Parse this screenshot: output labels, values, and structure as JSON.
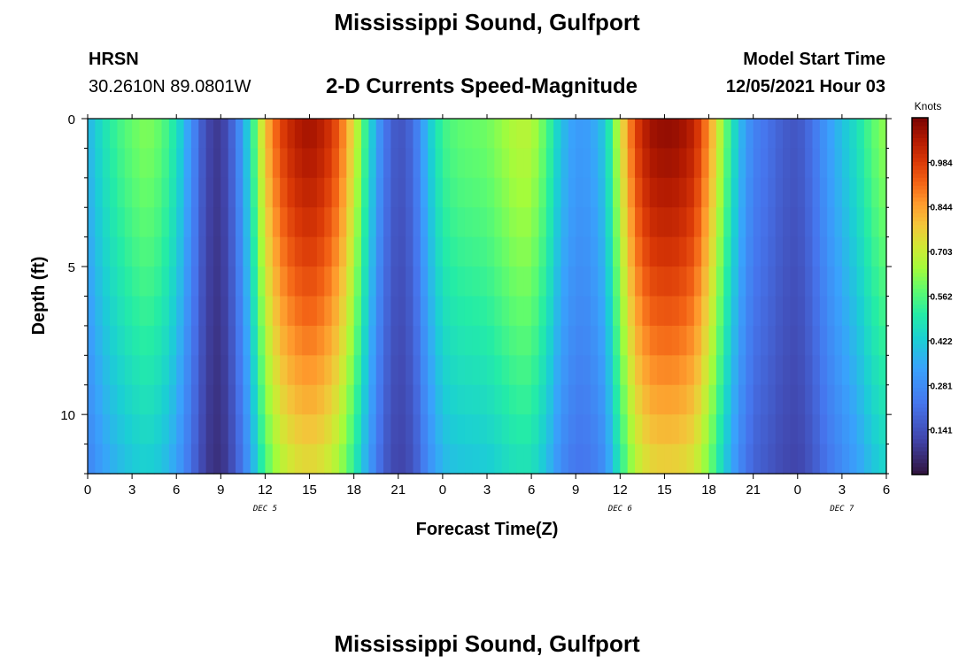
{
  "header": {
    "title": "Mississippi Sound, Gulfport",
    "station_id": "HRSN",
    "station_coords": "30.2610N  89.0801W",
    "subtitle": "2-D Currents Speed-Magnitude",
    "model_start_label": "Model Start Time",
    "model_start_value": "12/05/2021 Hour 03"
  },
  "footer": {
    "title": "Mississippi Sound, Gulfport"
  },
  "chart_data": {
    "type": "heatmap",
    "title": "2-D Currents Speed-Magnitude",
    "xlabel": "Forecast Time(Z)",
    "ylabel": "Depth (ft)",
    "x_tick_labels": [
      "0",
      "3",
      "6",
      "9",
      "12",
      "15",
      "18",
      "21",
      "0",
      "3",
      "6",
      "9",
      "12",
      "15",
      "18",
      "21",
      "0",
      "3",
      "6"
    ],
    "x_range_hours": [
      0,
      54
    ],
    "y_tick_labels": [
      "0",
      "5",
      "10"
    ],
    "y_range": [
      0,
      12
    ],
    "y_inverted": true,
    "date_labels": [
      {
        "text": "DEC 5",
        "hour": 12
      },
      {
        "text": "DEC 6",
        "hour": 36
      },
      {
        "text": "DEC 7",
        "hour": 51
      }
    ],
    "colorbar": {
      "title": "Knots",
      "tick_labels": [
        "0.984",
        "0.844",
        "0.703",
        "0.562",
        "0.422",
        "0.281",
        "0.141"
      ],
      "tick_values": [
        0.984,
        0.844,
        0.703,
        0.562,
        0.422,
        0.281,
        0.141
      ],
      "range": [
        0,
        1.125
      ]
    },
    "surface_speed_knots": [
      {
        "hour": 0,
        "v": 0.35
      },
      {
        "hour": 1,
        "v": 0.45
      },
      {
        "hour": 2,
        "v": 0.52
      },
      {
        "hour": 3,
        "v": 0.57
      },
      {
        "hour": 4,
        "v": 0.6
      },
      {
        "hour": 5,
        "v": 0.56
      },
      {
        "hour": 6,
        "v": 0.46
      },
      {
        "hour": 7,
        "v": 0.28
      },
      {
        "hour": 8,
        "v": 0.1
      },
      {
        "hour": 9,
        "v": 0.06
      },
      {
        "hour": 10,
        "v": 0.2
      },
      {
        "hour": 11,
        "v": 0.45
      },
      {
        "hour": 12,
        "v": 0.78
      },
      {
        "hour": 13,
        "v": 0.95
      },
      {
        "hour": 14,
        "v": 1.03
      },
      {
        "hour": 15,
        "v": 1.06
      },
      {
        "hour": 16,
        "v": 1.02
      },
      {
        "hour": 17,
        "v": 0.92
      },
      {
        "hour": 18,
        "v": 0.72
      },
      {
        "hour": 19,
        "v": 0.45
      },
      {
        "hour": 20,
        "v": 0.22
      },
      {
        "hour": 21,
        "v": 0.12
      },
      {
        "hour": 22,
        "v": 0.18
      },
      {
        "hour": 23,
        "v": 0.38
      },
      {
        "hour": 24,
        "v": 0.52
      },
      {
        "hour": 25,
        "v": 0.56
      },
      {
        "hour": 26,
        "v": 0.57
      },
      {
        "hour": 27,
        "v": 0.58
      },
      {
        "hour": 28,
        "v": 0.62
      },
      {
        "hour": 29,
        "v": 0.66
      },
      {
        "hour": 30,
        "v": 0.66
      },
      {
        "hour": 31,
        "v": 0.55
      },
      {
        "hour": 32,
        "v": 0.38
      },
      {
        "hour": 33,
        "v": 0.3
      },
      {
        "hour": 34,
        "v": 0.31
      },
      {
        "hour": 35,
        "v": 0.4
      },
      {
        "hour": 36,
        "v": 0.7
      },
      {
        "hour": 37,
        "v": 0.95
      },
      {
        "hour": 38,
        "v": 1.06
      },
      {
        "hour": 39,
        "v": 1.08
      },
      {
        "hour": 40,
        "v": 1.07
      },
      {
        "hour": 41,
        "v": 1.02
      },
      {
        "hour": 42,
        "v": 0.85
      },
      {
        "hour": 43,
        "v": 0.6
      },
      {
        "hour": 44,
        "v": 0.38
      },
      {
        "hour": 45,
        "v": 0.24
      },
      {
        "hour": 46,
        "v": 0.2
      },
      {
        "hour": 47,
        "v": 0.15
      },
      {
        "hour": 48,
        "v": 0.13
      },
      {
        "hour": 49,
        "v": 0.2
      },
      {
        "hour": 50,
        "v": 0.3
      },
      {
        "hour": 51,
        "v": 0.38
      },
      {
        "hour": 52,
        "v": 0.45
      },
      {
        "hour": 53,
        "v": 0.55
      },
      {
        "hour": 54,
        "v": 0.62
      }
    ],
    "grid": false,
    "colormap": "turbo"
  }
}
